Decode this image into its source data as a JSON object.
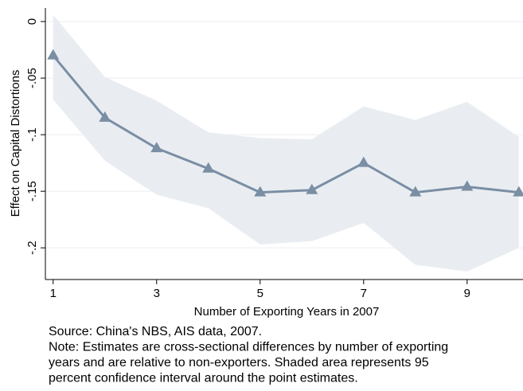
{
  "chart_data": {
    "type": "line",
    "y_label": "Effect on Capital Distortions",
    "x_label": "Number of Exporting Years in 2007",
    "x": [
      1,
      2,
      3,
      4,
      5,
      6,
      7,
      8,
      9,
      10
    ],
    "series": [
      {
        "color": "#7a8ea4",
        "values": [
          -0.03,
          -0.085,
          -0.112,
          -0.13,
          -0.151,
          -0.149,
          -0.125,
          -0.151,
          -0.146,
          -0.151
        ]
      }
    ],
    "band": {
      "color": "#e9edf1",
      "upper": [
        0.006,
        -0.049,
        -0.07,
        -0.098,
        -0.103,
        -0.104,
        -0.075,
        -0.087,
        -0.071,
        -0.102
      ],
      "lower": [
        -0.069,
        -0.123,
        -0.153,
        -0.165,
        -0.197,
        -0.194,
        -0.178,
        -0.215,
        -0.221,
        -0.2
      ]
    },
    "xlim": [
      0.85,
      10.08
    ],
    "ylim": [
      -0.228,
      0.012
    ],
    "xticks": [
      1,
      3,
      5,
      7,
      9
    ],
    "yticks": [
      {
        "value": 0,
        "label": "0"
      },
      {
        "value": -0.05,
        "label": "-.05"
      },
      {
        "value": -0.1,
        "label": "-.1"
      },
      {
        "value": -0.15,
        "label": "-.15"
      },
      {
        "value": -0.2,
        "label": "-.2"
      }
    ],
    "grid": true,
    "notes": [
      "Source: China's NBS, AIS data, 2007.",
      "Note: Estimates are cross-sectional differences by number of exporting",
      "years and are relative to non-exporters. Shaded area represents 95",
      "percent confidence interval around the point estimates."
    ]
  }
}
